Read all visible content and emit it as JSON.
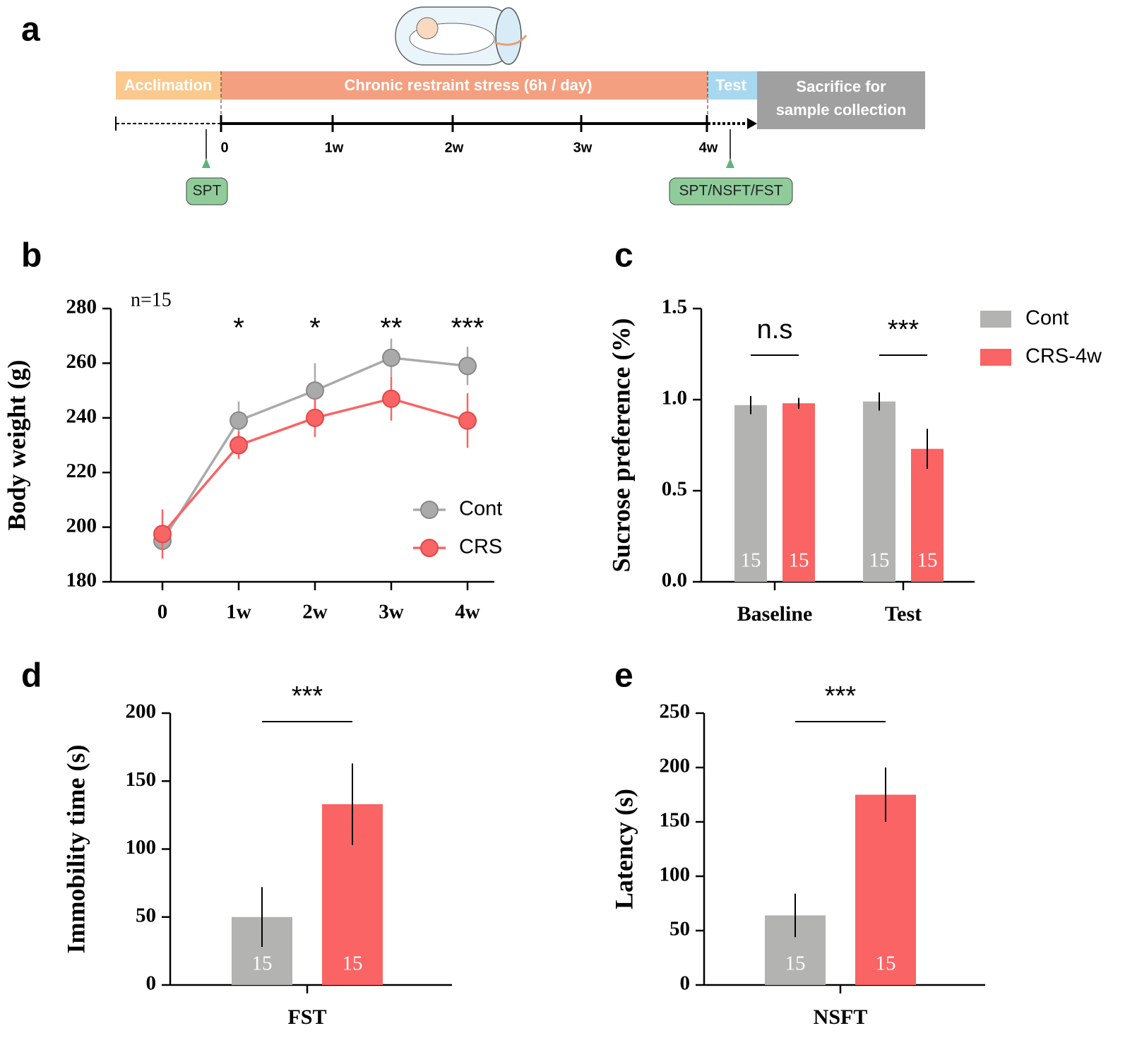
{
  "timeline": {
    "label": "a",
    "phases": [
      "Acclimation",
      "Chronic restraint stress (6h / day)",
      "Test"
    ],
    "final": [
      "Sacrifice for",
      "sample collection"
    ],
    "ticks": [
      "0",
      "1w",
      "2w",
      "3w",
      "4w"
    ],
    "tests": [
      "SPT",
      "SPT/NSFT/FST"
    ]
  },
  "chart_data": [
    {
      "type": "line",
      "panel": "b",
      "annotation": "n=15",
      "y_label": "Body weight (g)",
      "categories": [
        "0",
        "1w",
        "2w",
        "3w",
        "4w"
      ],
      "significance": [
        null,
        "*",
        "*",
        "**",
        "***"
      ],
      "ylim": [
        180,
        280
      ],
      "yticks": [
        180,
        200,
        220,
        240,
        260,
        280
      ],
      "series": [
        {
          "name": "Cont",
          "color": "#aaaaaa",
          "values": [
            195,
            239,
            250,
            262,
            259
          ],
          "errors": [
            3,
            7,
            10,
            7,
            7
          ]
        },
        {
          "name": "CRS",
          "color": "#f96464",
          "values": [
            197.5,
            230,
            240,
            247,
            239
          ],
          "errors": [
            9,
            5,
            7,
            8,
            10
          ]
        }
      ]
    },
    {
      "type": "bar",
      "panel": "c",
      "y_label": "Sucrose preference (%)",
      "categories": [
        "Baseline",
        "Test"
      ],
      "significance": [
        "n.s",
        "***"
      ],
      "ylim": [
        0,
        1.5
      ],
      "yticks": [
        {
          "value": 0,
          "label": "0.0"
        },
        0.5,
        {
          "value": 1,
          "label": "1.0"
        },
        1.5
      ],
      "series": [
        {
          "name": "Cont",
          "color": "#b3b3b2",
          "values": [
            0.97,
            0.99
          ],
          "errors": [
            0.05,
            0.05
          ],
          "n": [
            15,
            15
          ]
        },
        {
          "name": "CRS-4w",
          "color": "#fa6464",
          "values": [
            0.98,
            0.73
          ],
          "errors": [
            0.03,
            0.11
          ],
          "n": [
            15,
            15
          ]
        }
      ]
    },
    {
      "type": "bar",
      "panel": "d",
      "y_label": "Immobility time (s)",
      "categories": [
        "FST"
      ],
      "significance": [
        "***"
      ],
      "ylim": [
        0,
        200
      ],
      "yticks": [
        0,
        50,
        100,
        150,
        200
      ],
      "series": [
        {
          "color": "#b3b3b2",
          "values": [
            50
          ],
          "errors": [
            22
          ],
          "n": [
            15
          ]
        },
        {
          "color": "#fa6464",
          "values": [
            133
          ],
          "errors": [
            30
          ],
          "n": [
            15
          ]
        }
      ]
    },
    {
      "type": "bar",
      "panel": "e",
      "y_label": "Latency (s)",
      "categories": [
        "NSFT"
      ],
      "significance": [
        "***"
      ],
      "ylim": [
        0,
        250
      ],
      "yticks": [
        0,
        50,
        100,
        150,
        200,
        250
      ],
      "series": [
        {
          "color": "#b3b3b2",
          "values": [
            64
          ],
          "errors": [
            20
          ],
          "n": [
            15
          ]
        },
        {
          "color": "#fa6464",
          "values": [
            175
          ],
          "errors": [
            25
          ],
          "n": [
            15
          ]
        }
      ]
    }
  ]
}
